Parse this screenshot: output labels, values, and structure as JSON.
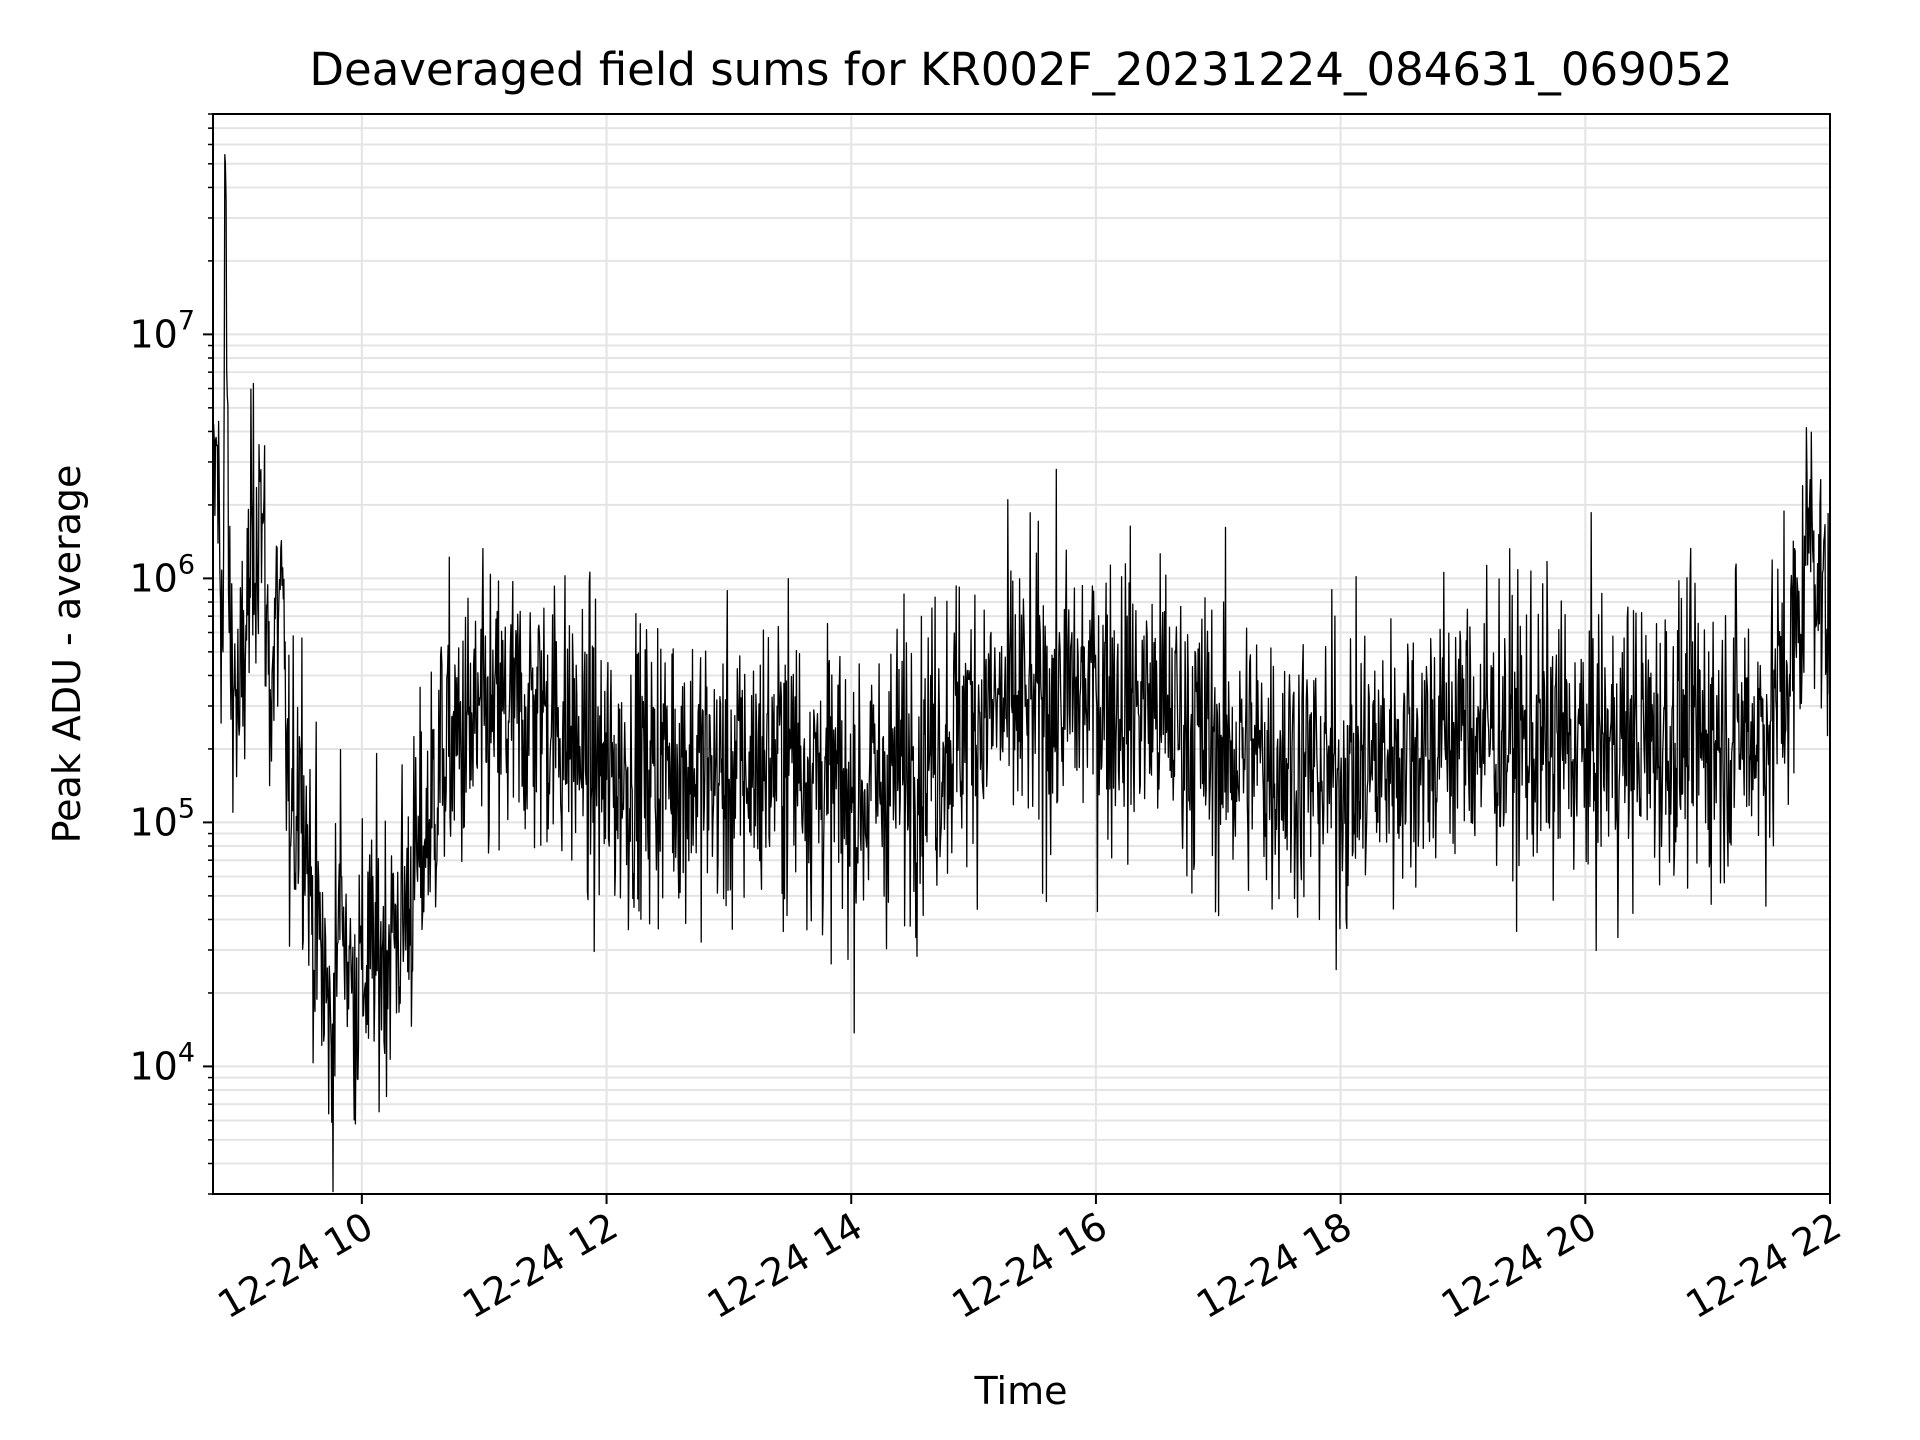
{
  "chart_data": {
    "type": "line",
    "title": "Deaveraged field sums for KR002F_20231224_084631_069052",
    "xlabel": "Time",
    "ylabel": "Peak ADU - average",
    "x_scale": "time",
    "y_scale": "log",
    "xlim": [
      "2023-12-24 08:47",
      "2023-12-24 22:00"
    ],
    "ylim": [
      3000,
      80000000
    ],
    "x_ticks": [
      {
        "value": "2023-12-24 10:00",
        "label": "12-24 10"
      },
      {
        "value": "2023-12-24 12:00",
        "label": "12-24 12"
      },
      {
        "value": "2023-12-24 14:00",
        "label": "12-24 14"
      },
      {
        "value": "2023-12-24 16:00",
        "label": "12-24 16"
      },
      {
        "value": "2023-12-24 18:00",
        "label": "12-24 18"
      },
      {
        "value": "2023-12-24 20:00",
        "label": "12-24 20"
      },
      {
        "value": "2023-12-24 22:00",
        "label": "12-24 22"
      }
    ],
    "y_ticks": [
      {
        "value": 10000,
        "base": "10",
        "exp": "4"
      },
      {
        "value": 100000,
        "base": "10",
        "exp": "5"
      },
      {
        "value": 1000000,
        "base": "10",
        "exp": "6"
      },
      {
        "value": 10000000,
        "base": "10",
        "exp": "7"
      }
    ],
    "grid": true,
    "minor_grid_y": true,
    "line_color": "#000000",
    "series": [
      {
        "values": [
          [
            "2023-12-24 08:47",
            1500000
          ],
          [
            "2023-12-24 08:49",
            3500000
          ],
          [
            "2023-12-24 08:52",
            500000
          ],
          [
            "2023-12-24 08:53",
            50000000
          ],
          [
            "2023-12-24 08:55",
            600000
          ],
          [
            "2023-12-24 09:00",
            250000
          ],
          [
            "2023-12-24 09:05",
            1000000
          ],
          [
            "2023-12-24 09:10",
            2500000
          ],
          [
            "2023-12-24 09:15",
            350000
          ],
          [
            "2023-12-24 09:20",
            900000
          ],
          [
            "2023-12-24 09:25",
            80000
          ],
          [
            "2023-12-24 09:30",
            200000
          ],
          [
            "2023-12-24 09:35",
            50000
          ],
          [
            "2023-12-24 09:40",
            30000
          ],
          [
            "2023-12-24 09:45",
            12000
          ],
          [
            "2023-12-24 09:50",
            60000
          ],
          [
            "2023-12-24 09:55",
            20000
          ],
          [
            "2023-12-24 10:00",
            25000
          ],
          [
            "2023-12-24 10:10",
            30000
          ],
          [
            "2023-12-24 10:20",
            40000
          ],
          [
            "2023-12-24 10:30",
            80000
          ],
          [
            "2023-12-24 10:40",
            200000
          ],
          [
            "2023-12-24 11:00",
            250000
          ],
          [
            "2023-12-24 11:30",
            300000
          ],
          [
            "2023-12-24 12:00",
            150000
          ],
          [
            "2023-12-24 12:30",
            180000
          ],
          [
            "2023-12-24 13:00",
            150000
          ],
          [
            "2023-12-24 13:30",
            200000
          ],
          [
            "2023-12-24 14:00",
            120000
          ],
          [
            "2023-12-24 14:30",
            180000
          ],
          [
            "2023-12-24 15:00",
            280000
          ],
          [
            "2023-12-24 15:30",
            300000
          ],
          [
            "2023-12-24 16:00",
            350000
          ],
          [
            "2023-12-24 16:30",
            300000
          ],
          [
            "2023-12-24 17:00",
            200000
          ],
          [
            "2023-12-24 17:30",
            180000
          ],
          [
            "2023-12-24 18:00",
            150000
          ],
          [
            "2023-12-24 18:30",
            200000
          ],
          [
            "2023-12-24 19:00",
            250000
          ],
          [
            "2023-12-24 19:30",
            220000
          ],
          [
            "2023-12-24 20:00",
            200000
          ],
          [
            "2023-12-24 20:30",
            220000
          ],
          [
            "2023-12-24 21:00",
            230000
          ],
          [
            "2023-12-24 21:30",
            250000
          ],
          [
            "2023-12-24 21:45",
            600000
          ],
          [
            "2023-12-24 21:50",
            2000000
          ],
          [
            "2023-12-24 22:00",
            500000
          ]
        ],
        "noise_log10_sd": 0.3
      }
    ]
  }
}
